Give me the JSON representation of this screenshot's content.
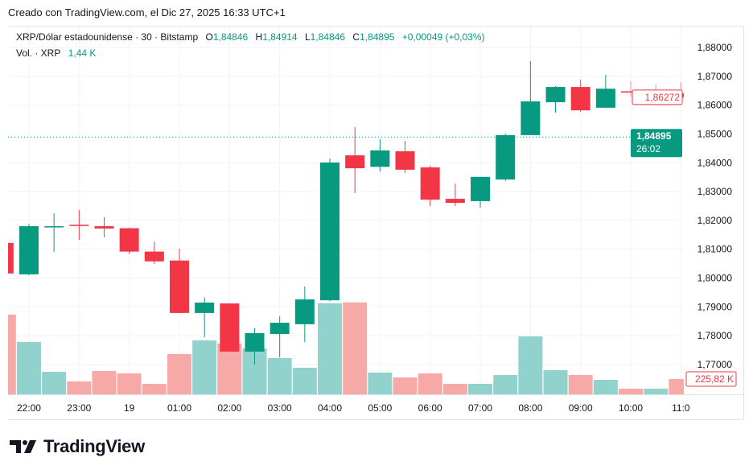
{
  "caption": "Creado con TradingView.com, el Dic 27, 2025 16:33 UTC+1",
  "legend": {
    "symbol": "XRP/Dólar estadounidense · 30 · Bitstamp",
    "o_label": "O",
    "o": "1,84846",
    "h_label": "H",
    "h": "1,84914",
    "l_label": "L",
    "l": "1,84846",
    "c_label": "C",
    "c": "1,84895",
    "change": "+0,00049 (+0,03%)",
    "vol_label": "Vol. · XRP",
    "vol": "1,44 K"
  },
  "colors": {
    "up": "#089981",
    "down": "#F23645",
    "vol_up": "#92D2CC",
    "vol_down": "#F7A9A7",
    "grid": "#f0f3fa"
  },
  "chart_data": {
    "type": "candlestick",
    "interval": "30",
    "ylim": [
      1.77,
      1.88
    ],
    "y_ticks": [
      "1,88000",
      "1,87000",
      "1,86000",
      "1,85000",
      "1,84000",
      "1,83000",
      "1,82000",
      "1,81000",
      "1,80000",
      "1,79000",
      "1,78000",
      "1,77000"
    ],
    "y_tick_values": [
      1.88,
      1.87,
      1.86,
      1.85,
      1.84,
      1.83,
      1.82,
      1.81,
      1.8,
      1.79,
      1.78,
      1.77
    ],
    "x_ticks": [
      {
        "label": "22:00",
        "index": 1
      },
      {
        "label": "23:00",
        "index": 3
      },
      {
        "label": "19",
        "index": 5
      },
      {
        "label": "01:00",
        "index": 7
      },
      {
        "label": "02:00",
        "index": 9
      },
      {
        "label": "03:00",
        "index": 11
      },
      {
        "label": "04:00",
        "index": 13
      },
      {
        "label": "05:00",
        "index": 15
      },
      {
        "label": "06:00",
        "index": 17
      },
      {
        "label": "07:00",
        "index": 19
      },
      {
        "label": "08:00",
        "index": 21
      },
      {
        "label": "09:00",
        "index": 23
      },
      {
        "label": "10:00",
        "index": 25
      },
      {
        "label": "11:0",
        "index": 27
      }
    ],
    "candles": [
      {
        "t": "21:30",
        "o": 1.8122,
        "h": 1.8125,
        "l": 1.801,
        "c": 1.8016,
        "v": 1177
      },
      {
        "t": "22:00",
        "o": 1.8013,
        "h": 1.8188,
        "l": 1.801,
        "c": 1.818,
        "v": 773
      },
      {
        "t": "22:30",
        "o": 1.8177,
        "h": 1.8225,
        "l": 1.8091,
        "c": 1.818,
        "v": 333
      },
      {
        "t": "23:00",
        "o": 1.8185,
        "h": 1.8236,
        "l": 1.8133,
        "c": 1.8181,
        "v": 190
      },
      {
        "t": "23:30",
        "o": 1.818,
        "h": 1.8211,
        "l": 1.8141,
        "c": 1.8172,
        "v": 345
      },
      {
        "t": "00:00",
        "o": 1.8173,
        "h": 1.8175,
        "l": 1.8084,
        "c": 1.8092,
        "v": 309
      },
      {
        "t": "00:30",
        "o": 1.8092,
        "h": 1.8127,
        "l": 1.8049,
        "c": 1.8058,
        "v": 155
      },
      {
        "t": "01:00",
        "o": 1.8061,
        "h": 1.8102,
        "l": 1.7879,
        "c": 1.7879,
        "v": 595
      },
      {
        "t": "01:30",
        "o": 1.7879,
        "h": 1.7932,
        "l": 1.7795,
        "c": 1.7915,
        "v": 797
      },
      {
        "t": "02:00",
        "o": 1.7912,
        "h": 1.7912,
        "l": 1.7745,
        "c": 1.7745,
        "v": 750
      },
      {
        "t": "02:30",
        "o": 1.7745,
        "h": 1.7826,
        "l": 1.77,
        "c": 1.7809,
        "v": 678
      },
      {
        "t": "03:00",
        "o": 1.7806,
        "h": 1.7868,
        "l": 1.7725,
        "c": 1.7845,
        "v": 535
      },
      {
        "t": "03:30",
        "o": 1.784,
        "h": 1.7971,
        "l": 1.7778,
        "c": 1.7926,
        "v": 393
      },
      {
        "t": "04:00",
        "o": 1.7923,
        "h": 1.8415,
        "l": 1.792,
        "c": 1.8401,
        "v": 1345
      },
      {
        "t": "04:30",
        "o": 1.8426,
        "h": 1.8524,
        "l": 1.8295,
        "c": 1.8381,
        "v": 1357
      },
      {
        "t": "05:00",
        "o": 1.8386,
        "h": 1.8482,
        "l": 1.837,
        "c": 1.8443,
        "v": 321
      },
      {
        "t": "05:30",
        "o": 1.844,
        "h": 1.8476,
        "l": 1.8365,
        "c": 1.8376,
        "v": 250
      },
      {
        "t": "06:00",
        "o": 1.8384,
        "h": 1.839,
        "l": 1.825,
        "c": 1.8272,
        "v": 309
      },
      {
        "t": "06:30",
        "o": 1.8275,
        "h": 1.8328,
        "l": 1.825,
        "c": 1.8261,
        "v": 155
      },
      {
        "t": "07:00",
        "o": 1.8267,
        "h": 1.8351,
        "l": 1.8244,
        "c": 1.8351,
        "v": 155
      },
      {
        "t": "07:30",
        "o": 1.8342,
        "h": 1.8501,
        "l": 1.8337,
        "c": 1.8496,
        "v": 285
      },
      {
        "t": "08:00",
        "o": 1.8496,
        "h": 1.8753,
        "l": 1.8496,
        "c": 1.8613,
        "v": 855
      },
      {
        "t": "08:30",
        "o": 1.861,
        "h": 1.8666,
        "l": 1.8574,
        "c": 1.8663,
        "v": 356
      },
      {
        "t": "09:00",
        "o": 1.8663,
        "h": 1.8688,
        "l": 1.8577,
        "c": 1.8582,
        "v": 285
      },
      {
        "t": "09:30",
        "o": 1.8591,
        "h": 1.8705,
        "l": 1.8591,
        "c": 1.8657,
        "v": 214
      },
      {
        "t": "10:00",
        "o": 1.8648,
        "h": 1.8683,
        "l": 1.863,
        "c": 1.8646,
        "v": 83
      },
      {
        "t": "10:30",
        "o": 1.8636,
        "h": 1.8672,
        "l": 1.8607,
        "c": 1.8638,
        "v": 83
      },
      {
        "t": "11:00",
        "o": 1.8641,
        "h": 1.868,
        "l": 1.8613,
        "c": 1.8627,
        "v": 226
      }
    ],
    "price_labels": {
      "bar_close": "1,86272",
      "bar_close_value": 1.86272,
      "last_price": "1,84895",
      "last_price_value": 1.84895,
      "countdown": "26:02",
      "volume": "225,82 K"
    }
  },
  "footer": {
    "brand": "TradingView"
  }
}
